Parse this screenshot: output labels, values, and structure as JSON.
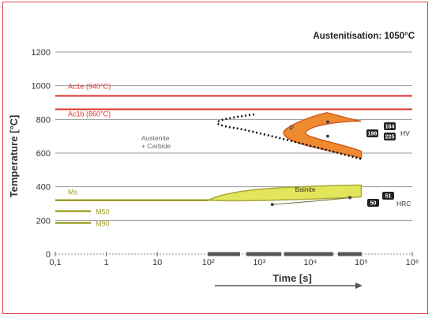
{
  "chart_data": {
    "type": "line",
    "title": "Austenitisation: 1050°C",
    "xlabel": "Time [s]",
    "ylabel": "Temperature [°C]",
    "x_scale": "log",
    "xlim": [
      0.1,
      1000000
    ],
    "ylim": [
      0,
      1200
    ],
    "x_ticks": [
      "0,1",
      "1",
      "10",
      "10²",
      "10³",
      "10⁴",
      "10⁵",
      "10⁶"
    ],
    "y_ticks": [
      "0",
      "200",
      "400",
      "600",
      "800",
      "1000",
      "1200"
    ],
    "grid": "horizontal",
    "reference_lines": [
      {
        "name": "Ac1e (940°C)",
        "y": 940,
        "color": "#e0302a"
      },
      {
        "name": "Ac1b (860°C)",
        "y": 860,
        "color": "#e0302a"
      },
      {
        "name": "Ms",
        "y": 320,
        "color": "#a0a02a"
      },
      {
        "name": "M50",
        "y": 255,
        "color": "#a0a02a"
      },
      {
        "name": "M90",
        "y": 185,
        "color": "#a0a02a"
      }
    ],
    "regions": [
      {
        "name": "P",
        "color": "#f08a30",
        "time_range": [
          3000,
          100000
        ],
        "temp_range": [
          560,
          840
        ]
      },
      {
        "name": "Bainite",
        "color": "#e3e55a",
        "time_range": [
          100,
          100000
        ],
        "temp_range": [
          290,
          410
        ]
      }
    ],
    "annotations": [
      {
        "text": "Austenite + Carbide",
        "lines": [
          "Austenite",
          "+ Carbide"
        ]
      },
      {
        "text": "HV",
        "values": [
          "184",
          "198",
          "225"
        ]
      },
      {
        "text": "HRC",
        "values": [
          "51",
          "50"
        ]
      }
    ]
  }
}
